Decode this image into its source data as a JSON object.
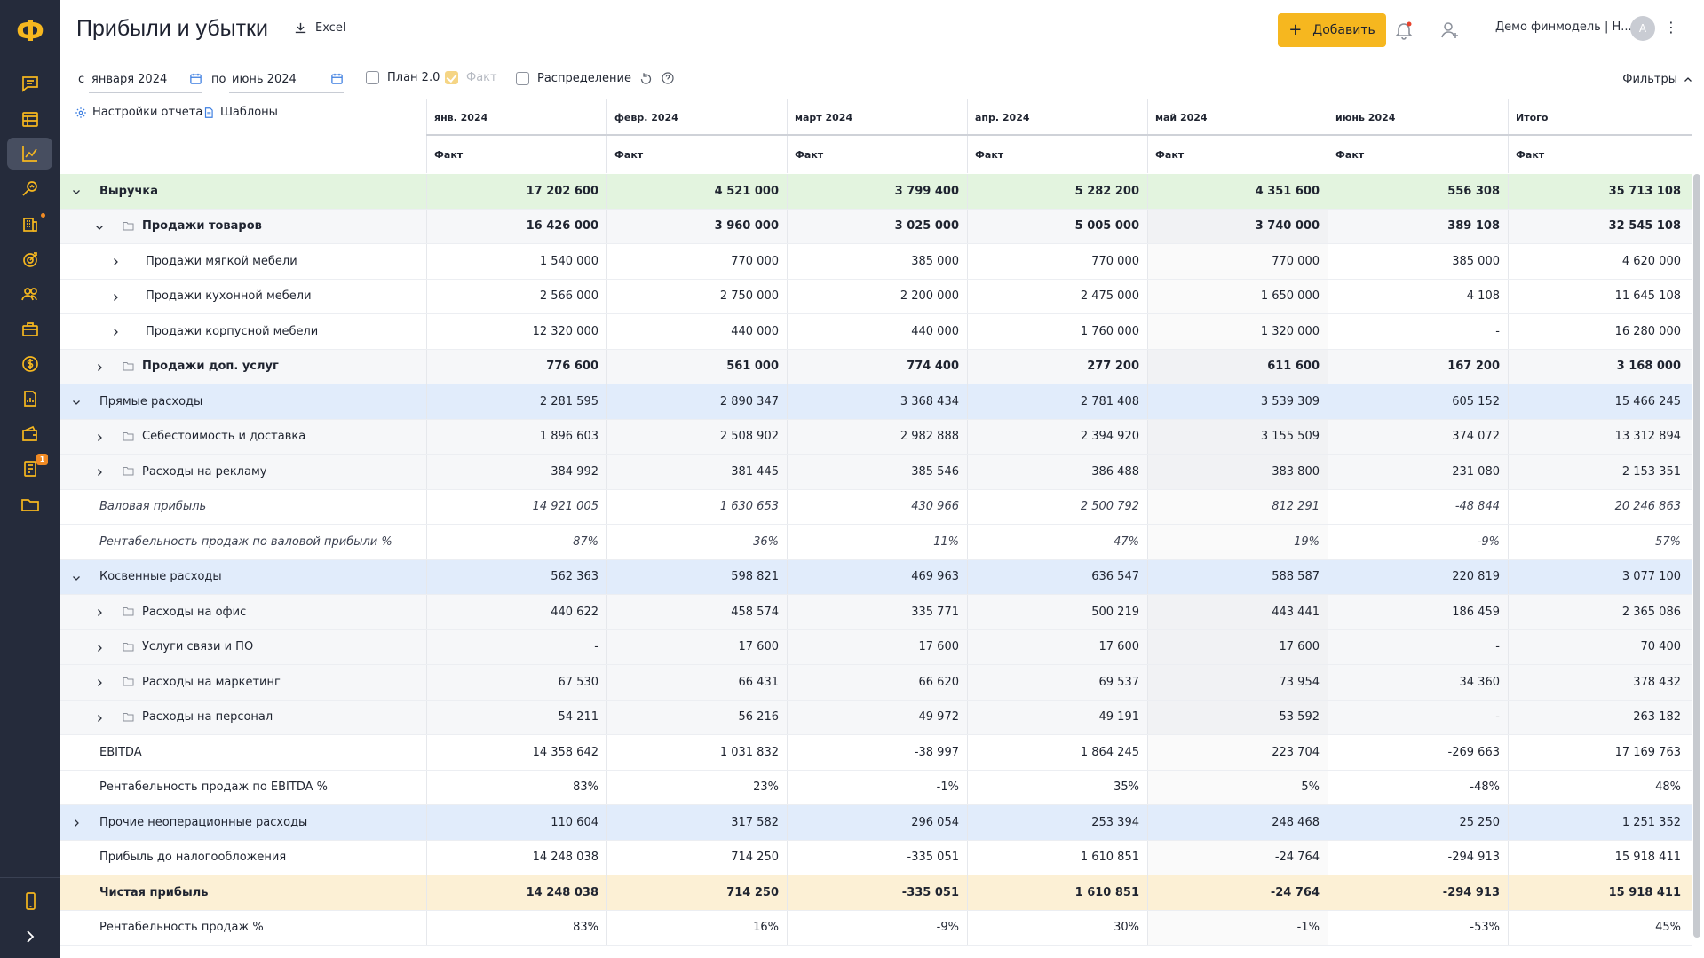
{
  "app": {
    "logo_glyph": "Ф",
    "accent_color": "#f6b71f",
    "sidebar_bg": "#252b3b"
  },
  "sidebar": {
    "items": [
      {
        "icon": "chat-icon"
      },
      {
        "icon": "calendar-table-icon"
      },
      {
        "icon": "chart-icon",
        "active": true
      },
      {
        "icon": "search-chart-icon"
      },
      {
        "icon": "building-icon",
        "dot": true
      },
      {
        "icon": "target-icon"
      },
      {
        "icon": "people-icon"
      },
      {
        "icon": "briefcase-icon"
      },
      {
        "icon": "dollar-icon"
      },
      {
        "icon": "report-icon"
      },
      {
        "icon": "wallet-icon"
      },
      {
        "icon": "invoice-icon",
        "badge": "1"
      },
      {
        "icon": "folder-icon"
      }
    ],
    "bottom": [
      {
        "icon": "mobile-icon"
      },
      {
        "icon": "expand-icon"
      }
    ]
  },
  "header": {
    "title": "Прибыли и убытки",
    "excel_label": "Excel",
    "add_label": "Добавить",
    "org_name": "Демо финмодель | Н...",
    "avatar_letter": "А"
  },
  "toolbar": {
    "from_label": "с",
    "from_value": "января 2024",
    "to_label": "по",
    "to_value": "июнь 2024",
    "plan_label": "План 2.0",
    "fact_label": "Факт",
    "distribution_label": "Распределение",
    "filters_label": "Фильтры",
    "report_settings_label": "Настройки отчета",
    "templates_label": "Шаблоны"
  },
  "table": {
    "columns": [
      "янв. 2024",
      "февр. 2024",
      "март 2024",
      "апр. 2024",
      "май 2024",
      "июнь 2024",
      "Итого"
    ],
    "subheader": [
      "Факт",
      "Факт",
      "Факт",
      "Факт",
      "Факт",
      "Факт",
      "Факт"
    ],
    "rows": [
      {
        "label": "Выручка",
        "style": "revenue",
        "level": 0,
        "chevron": "down",
        "folder": false,
        "bold": true,
        "values": [
          "17 202 600",
          "4 521 000",
          "3 799 400",
          "5 282 200",
          "4 351 600",
          "556 308",
          "35 713 108"
        ]
      },
      {
        "label": "Продажи товаров",
        "style": "sub",
        "level": 1,
        "chevron": "down",
        "folder": true,
        "bold": true,
        "values": [
          "16 426 000",
          "3 960 000",
          "3 025 000",
          "5 005 000",
          "3 740 000",
          "389 108",
          "32 545 108"
        ]
      },
      {
        "label": "Продажи мягкой мебели",
        "style": "plain",
        "level": 2,
        "chevron": "right",
        "folder": false,
        "bold": false,
        "values": [
          "1 540 000",
          "770 000",
          "385 000",
          "770 000",
          "770 000",
          "385 000",
          "4 620 000"
        ]
      },
      {
        "label": "Продажи кухонной мебели",
        "style": "plain",
        "level": 2,
        "chevron": "right",
        "folder": false,
        "bold": false,
        "values": [
          "2 566 000",
          "2 750 000",
          "2 200 000",
          "2 475 000",
          "1 650 000",
          "4 108",
          "11 645 108"
        ]
      },
      {
        "label": "Продажи корпусной мебели",
        "style": "plain",
        "level": 2,
        "chevron": "right",
        "folder": false,
        "bold": false,
        "values": [
          "12 320 000",
          "440 000",
          "440 000",
          "1 760 000",
          "1 320 000",
          "-",
          "16 280 000"
        ]
      },
      {
        "label": "Продажи доп. услуг",
        "style": "sub",
        "level": 1,
        "chevron": "right",
        "folder": true,
        "bold": true,
        "values": [
          "776 600",
          "561 000",
          "774 400",
          "277 200",
          "611 600",
          "167 200",
          "3 168 000"
        ]
      },
      {
        "label": "Прямые расходы",
        "style": "group",
        "level": 0,
        "chevron": "down",
        "folder": false,
        "bold": false,
        "values": [
          "2 281 595",
          "2 890 347",
          "3 368 434",
          "2 781 408",
          "3 539 309",
          "605 152",
          "15 466 245"
        ]
      },
      {
        "label": "Себестоимость и доставка",
        "style": "sub",
        "level": 1,
        "chevron": "right",
        "folder": true,
        "bold": false,
        "values": [
          "1 896 603",
          "2 508 902",
          "2 982 888",
          "2 394 920",
          "3 155 509",
          "374 072",
          "13 312 894"
        ]
      },
      {
        "label": "Расходы на рекламу",
        "style": "sub",
        "level": 1,
        "chevron": "right",
        "folder": true,
        "bold": false,
        "values": [
          "384 992",
          "381 445",
          "385 546",
          "386 488",
          "383 800",
          "231 080",
          "2 153 351"
        ]
      },
      {
        "label": "Валовая прибыль",
        "style": "italic",
        "level": 0,
        "chevron": "none",
        "folder": false,
        "bold": false,
        "values": [
          "14 921 005",
          "1 630 653",
          "430 966",
          "2 500 792",
          "812 291",
          "-48 844",
          "20 246 863"
        ]
      },
      {
        "label": "Рентабельность продаж по валовой прибыли %",
        "style": "italic",
        "level": 0,
        "chevron": "none",
        "folder": false,
        "bold": false,
        "values": [
          "87%",
          "36%",
          "11%",
          "47%",
          "19%",
          "-9%",
          "57%"
        ]
      },
      {
        "label": "Косвенные расходы",
        "style": "group",
        "level": 0,
        "chevron": "down",
        "folder": false,
        "bold": false,
        "values": [
          "562 363",
          "598 821",
          "469 963",
          "636 547",
          "588 587",
          "220 819",
          "3 077 100"
        ]
      },
      {
        "label": "Расходы на офис",
        "style": "sub",
        "level": 1,
        "chevron": "right",
        "folder": true,
        "bold": false,
        "values": [
          "440 622",
          "458 574",
          "335 771",
          "500 219",
          "443 441",
          "186 459",
          "2 365 086"
        ]
      },
      {
        "label": "Услуги связи и ПО",
        "style": "sub",
        "level": 1,
        "chevron": "right",
        "folder": true,
        "bold": false,
        "values": [
          "-",
          "17 600",
          "17 600",
          "17 600",
          "17 600",
          "-",
          "70 400"
        ]
      },
      {
        "label": "Расходы на маркетинг",
        "style": "sub",
        "level": 1,
        "chevron": "right",
        "folder": true,
        "bold": false,
        "values": [
          "67 530",
          "66 431",
          "66 620",
          "69 537",
          "73 954",
          "34 360",
          "378 432"
        ]
      },
      {
        "label": "Расходы на персонал",
        "style": "sub",
        "level": 1,
        "chevron": "right",
        "folder": true,
        "bold": false,
        "values": [
          "54 211",
          "56 216",
          "49 972",
          "49 191",
          "53 592",
          "-",
          "263 182"
        ]
      },
      {
        "label": "EBITDA",
        "style": "plain",
        "level": 0,
        "chevron": "none",
        "folder": false,
        "bold": false,
        "values": [
          "14 358 642",
          "1 031 832",
          "-38 997",
          "1 864 245",
          "223 704",
          "-269 663",
          "17 169 763"
        ]
      },
      {
        "label": "Рентабельность продаж по EBITDA %",
        "style": "plain",
        "level": 0,
        "chevron": "none",
        "folder": false,
        "bold": false,
        "values": [
          "83%",
          "23%",
          "-1%",
          "35%",
          "5%",
          "-48%",
          "48%"
        ]
      },
      {
        "label": "Прочие неоперационные расходы",
        "style": "group",
        "level": 0,
        "chevron": "right",
        "folder": false,
        "bold": false,
        "values": [
          "110 604",
          "317 582",
          "296 054",
          "253 394",
          "248 468",
          "25 250",
          "1 251 352"
        ]
      },
      {
        "label": "Прибыль до налогообложения",
        "style": "plain",
        "level": 0,
        "chevron": "none",
        "folder": false,
        "bold": false,
        "values": [
          "14 248 038",
          "714 250",
          "-335 051",
          "1 610 851",
          "-24 764",
          "-294 913",
          "15 918 411"
        ]
      },
      {
        "label": "Чистая прибыль",
        "style": "profit",
        "level": 0,
        "chevron": "none",
        "folder": false,
        "bold": true,
        "values": [
          "14 248 038",
          "714 250",
          "-335 051",
          "1 610 851",
          "-24 764",
          "-294 913",
          "15 918 411"
        ]
      },
      {
        "label": "Рентабельность продаж %",
        "style": "plain",
        "level": 0,
        "chevron": "none",
        "folder": false,
        "bold": false,
        "values": [
          "83%",
          "16%",
          "-9%",
          "30%",
          "-1%",
          "-53%",
          "45%"
        ]
      }
    ]
  }
}
